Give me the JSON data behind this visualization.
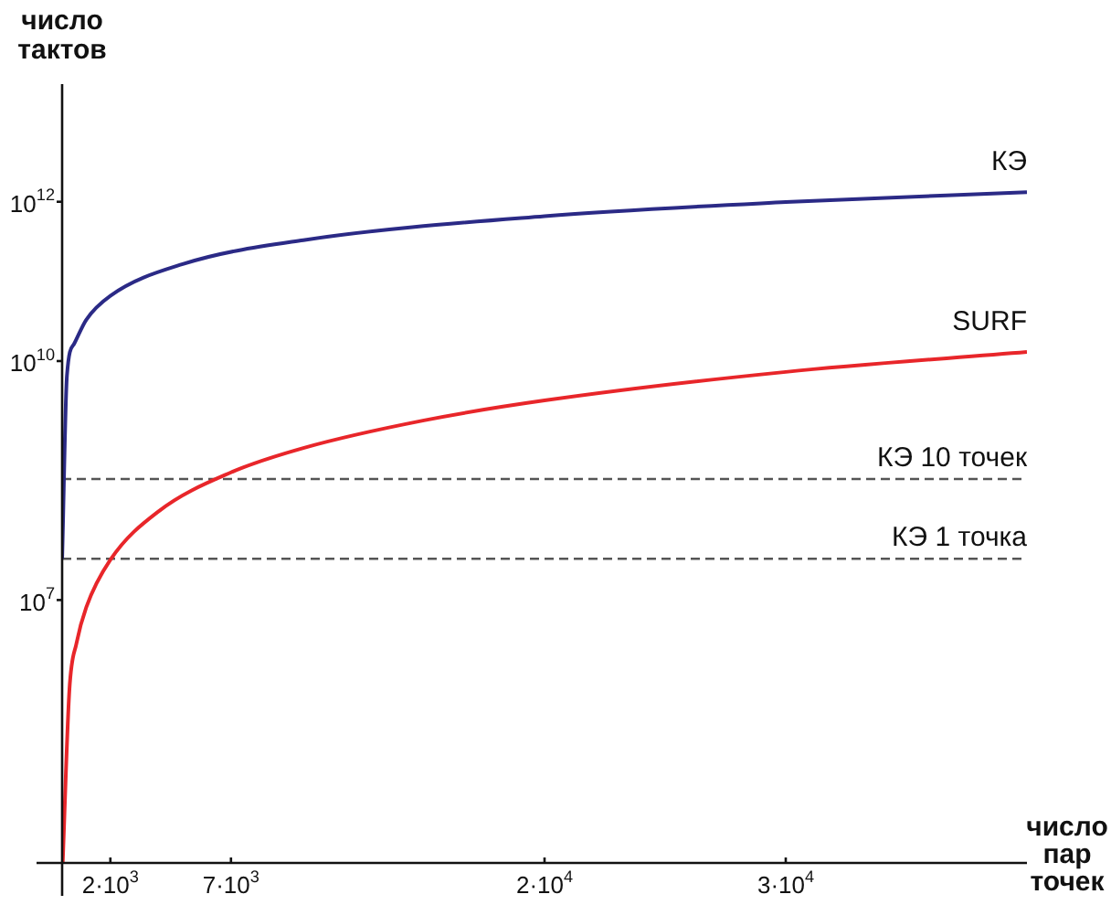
{
  "chart_data": {
    "type": "line",
    "xlabel": "число пар точек",
    "ylabel": "число тактов",
    "log": "y",
    "xlim": [
      0,
      40000
    ],
    "ylim": [
      5000,
      30000000000000
    ],
    "xticks": [
      {
        "value": 2000,
        "label": "2·10$^{3}$"
      },
      {
        "value": 7000,
        "label": "7·10$^{3}$"
      },
      {
        "value": 20000,
        "label": "2·10$^{4}$"
      },
      {
        "value": 30000,
        "label": "3·10$^{4}$"
      }
    ],
    "yticks": [
      {
        "value": 10000000,
        "label": "10$^{7}$"
      },
      {
        "value": 10000000000,
        "label": "10$^{10}$"
      },
      {
        "value": 1000000000000,
        "label": "10$^{12}$"
      }
    ],
    "grid": false,
    "legend": false,
    "marker": "none",
    "line_style": "solid",
    "series": [
      {
        "name": "КЭ",
        "color": "#2b2a86",
        "x": [
          1,
          200,
          500,
          1000,
          2000,
          5000,
          10000,
          20000,
          30000,
          40000
        ],
        "values": [
          33000000,
          6600000000,
          16500000000,
          33000000000,
          66000000000,
          165000000000,
          330000000000,
          660000000000,
          990000000000,
          1320000000000
        ]
      },
      {
        "name": "SURF",
        "color": "#e8262a",
        "x": [
          25,
          300,
          600,
          1000,
          2000,
          4000,
          7000,
          10000,
          15000,
          20000,
          30000,
          40000
        ],
        "values": [
          5100,
          730000,
          2900000,
          8100000,
          32000000,
          130000000,
          400000000,
          810000000,
          1800000000,
          3200000000,
          7300000000,
          13000000000
        ]
      }
    ],
    "ref_lines": [
      {
        "axis": "y",
        "value": 330000000,
        "label": "КЭ 10 точек",
        "color": "#555555",
        "line_style": "dashed"
      },
      {
        "axis": "y",
        "value": 33000000,
        "label": "КЭ 1 точка",
        "color": "#555555",
        "line_style": "dashed"
      }
    ]
  }
}
